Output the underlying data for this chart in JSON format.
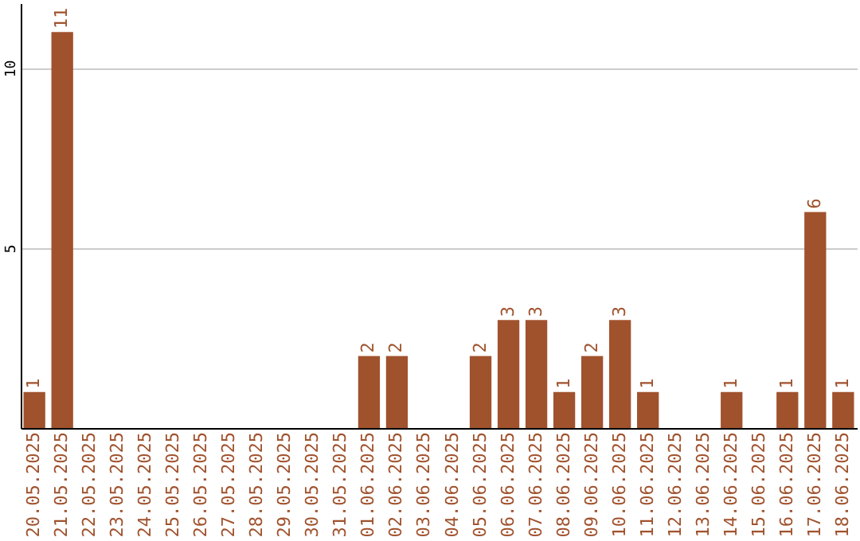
{
  "chart_data": {
    "type": "bar",
    "categories": [
      "20.05.2025",
      "21.05.2025",
      "22.05.2025",
      "23.05.2025",
      "24.05.2025",
      "25.05.2025",
      "26.05.2025",
      "27.05.2025",
      "28.05.2025",
      "29.05.2025",
      "30.05.2025",
      "31.05.2025",
      "01.06.2025",
      "02.06.2025",
      "03.06.2025",
      "04.06.2025",
      "05.06.2025",
      "06.06.2025",
      "07.06.2025",
      "08.06.2025",
      "09.06.2025",
      "10.06.2025",
      "11.06.2025",
      "12.06.2025",
      "13.06.2025",
      "14.06.2025",
      "15.06.2025",
      "16.06.2025",
      "17.06.2025",
      "18.06.2025"
    ],
    "values": [
      1,
      11,
      0,
      0,
      0,
      0,
      0,
      0,
      0,
      0,
      0,
      0,
      2,
      2,
      0,
      0,
      2,
      3,
      3,
      1,
      2,
      3,
      1,
      0,
      0,
      1,
      0,
      1,
      6,
      1
    ],
    "value_labels": [
      "1",
      "11",
      null,
      null,
      null,
      null,
      null,
      null,
      null,
      null,
      null,
      null,
      "2",
      "2",
      null,
      null,
      "2",
      "3",
      "3",
      "1",
      "2",
      "3",
      "1",
      null,
      null,
      "1",
      null,
      "1",
      "6",
      "1"
    ],
    "color": "#a0522d",
    "ylim": [
      0,
      11.8
    ],
    "yticks": [
      5,
      10
    ],
    "grid": "y"
  }
}
